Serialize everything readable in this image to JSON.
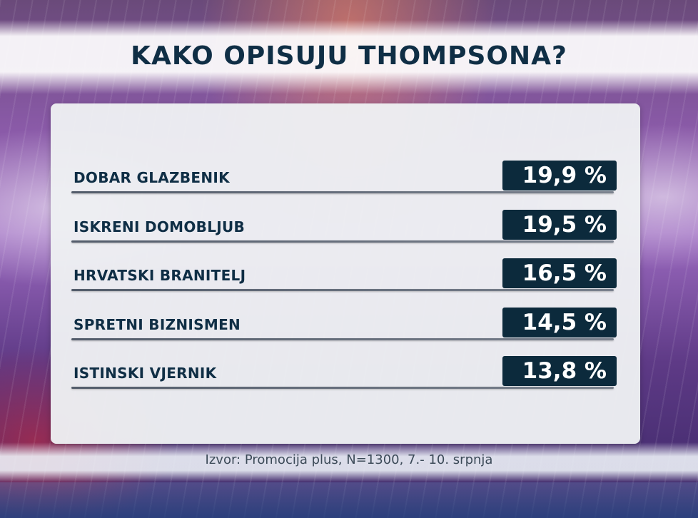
{
  "title": "KAKO OPISUJU THOMPSONA?",
  "source": "Izvor: Promocija plus, N=1300, 7.- 10. srpnja",
  "colors": {
    "text": "#0f2e45",
    "value_box": "#0c2a3c",
    "panel": "#eef0f3"
  },
  "chart_data": {
    "type": "table",
    "title": "KAKO OPISUJU THOMPSONA?",
    "rows": [
      {
        "label": "DOBAR GLAZBENIK",
        "value": 19.9,
        "display": "19,9 %"
      },
      {
        "label": "ISKRENI DOMOBLJUB",
        "value": 19.5,
        "display": "19,5 %"
      },
      {
        "label": "HRVATSKI BRANITELJ",
        "value": 16.5,
        "display": "16,5 %"
      },
      {
        "label": "SPRETNI BIZNISMEN",
        "value": 14.5,
        "display": "14,5 %"
      },
      {
        "label": "ISTINSKI VJERNIK",
        "value": 13.8,
        "display": "13,8 %"
      }
    ],
    "unit": "%",
    "source": "Izvor: Promocija plus, N=1300, 7.- 10. srpnja"
  }
}
